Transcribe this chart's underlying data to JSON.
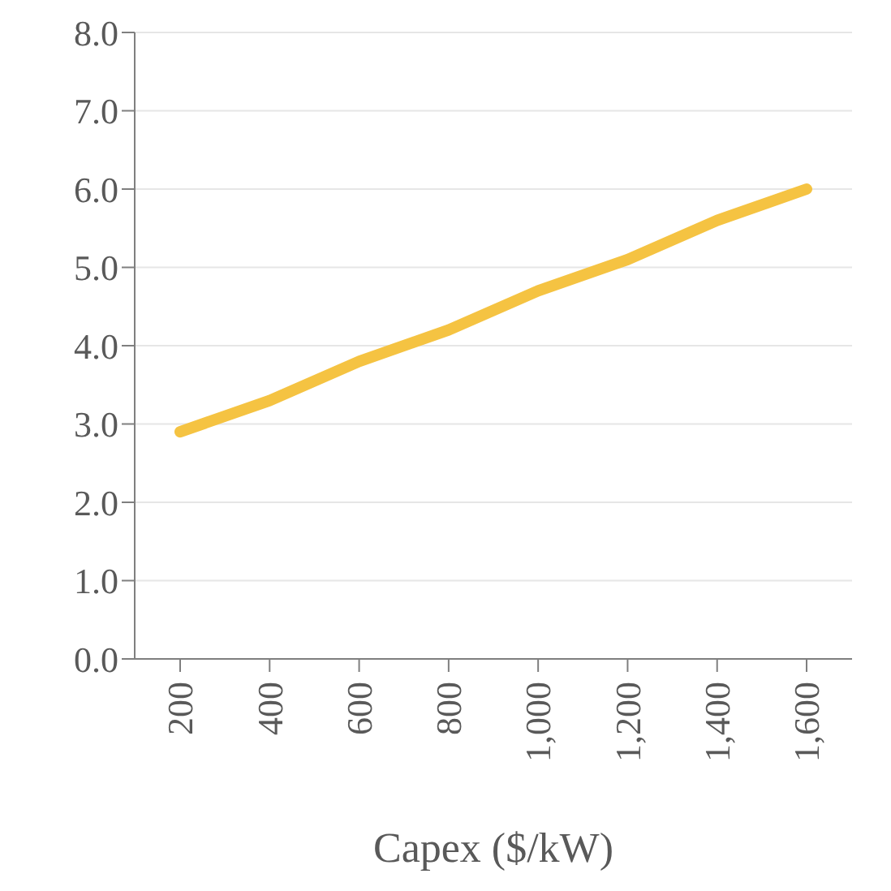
{
  "chart_data": {
    "type": "line",
    "xlabel": "Capex ($/kW)",
    "categories": [
      "200",
      "400",
      "600",
      "800",
      "1,000",
      "1,200",
      "1,400",
      "1,600"
    ],
    "series": [
      {
        "color": "#f5c342",
        "values": [
          2.9,
          3.3,
          3.8,
          4.2,
          4.7,
          5.1,
          5.6,
          6.0
        ]
      }
    ],
    "ylim": [
      0,
      8
    ],
    "yticks": [
      {
        "value": 0,
        "label": "0.0"
      },
      {
        "value": 1,
        "label": "1.0"
      },
      {
        "value": 2,
        "label": "2.0"
      },
      {
        "value": 3,
        "label": "3.0"
      },
      {
        "value": 4,
        "label": "4.0"
      },
      {
        "value": 5,
        "label": "5.0"
      },
      {
        "value": 6,
        "label": "6.0"
      },
      {
        "value": 7,
        "label": "7.0"
      },
      {
        "value": 8,
        "label": "8.0"
      }
    ],
    "grid": "y"
  }
}
